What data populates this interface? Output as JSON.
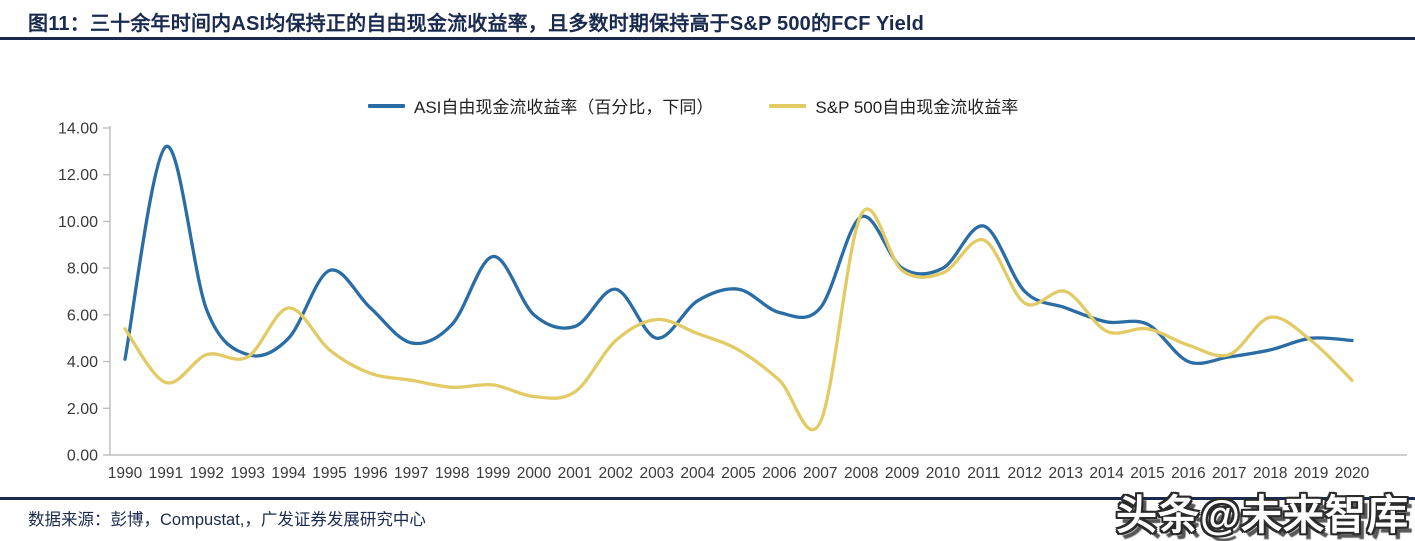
{
  "header": {
    "title": "图11：三十余年时间内ASI均保持正的自由现金流收益率，且多数时期保持高于S&P 500的FCF Yield"
  },
  "footer": {
    "source": "数据来源：彭博，Compustat,，广发证券发展研究中心"
  },
  "watermark": {
    "text": "头条@未来智库"
  },
  "colors": {
    "asi_line": "#2a6ca4",
    "sp500_line": "#e2ca65",
    "title_navy": "#1a2b4f",
    "axis_gray": "#bdbdbd",
    "tick_label": "#3a3a3a"
  },
  "chart_data": {
    "type": "line",
    "title": "",
    "xlabel": "",
    "ylabel": "",
    "categories": [
      "1990",
      "1991",
      "1992",
      "1993",
      "1994",
      "1995",
      "1996",
      "1997",
      "1998",
      "1999",
      "2000",
      "2001",
      "2002",
      "2003",
      "2004",
      "2005",
      "2006",
      "2007",
      "2008",
      "2009",
      "2010",
      "2011",
      "2012",
      "2013",
      "2014",
      "2015",
      "2016",
      "2017",
      "2018",
      "2019",
      "2020"
    ],
    "series": [
      {
        "name": "ASI自由现金流收益率（百分比，下同）",
        "color": "#2a6ca4",
        "values": [
          4.1,
          13.2,
          6.2,
          4.3,
          5.0,
          7.9,
          6.3,
          4.8,
          5.6,
          8.5,
          6.0,
          5.5,
          7.1,
          5.0,
          6.6,
          7.1,
          6.1,
          6.3,
          10.2,
          8.0,
          8.0,
          9.8,
          7.0,
          6.3,
          5.7,
          5.6,
          4.0,
          4.2,
          4.5,
          5.0,
          4.9
        ]
      },
      {
        "name": "S&P 500自由现金流收益率",
        "color": "#e2ca65",
        "values": [
          5.4,
          3.1,
          4.3,
          4.2,
          6.3,
          4.5,
          3.5,
          3.2,
          2.9,
          3.0,
          2.5,
          2.7,
          4.9,
          5.8,
          5.2,
          4.5,
          3.2,
          1.4,
          10.3,
          7.9,
          7.8,
          9.2,
          6.5,
          7.0,
          5.3,
          5.4,
          4.7,
          4.3,
          5.9,
          4.9,
          3.2
        ]
      }
    ],
    "ylim": [
      0,
      14
    ],
    "ytick_step": 2,
    "ytick_decimals": 2,
    "grid": false,
    "legend_position": "top-center"
  }
}
